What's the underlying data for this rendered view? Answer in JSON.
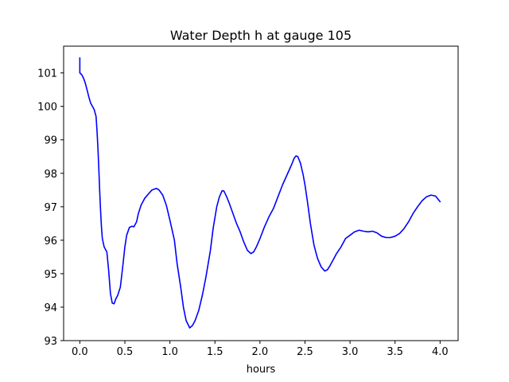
{
  "chart_data": {
    "type": "line",
    "title": "Water Depth h at gauge 105",
    "xlabel": "hours",
    "ylabel": "",
    "xlim": [
      -0.18,
      4.2
    ],
    "ylim": [
      93.0,
      101.8
    ],
    "xticks": [
      0.0,
      0.5,
      1.0,
      1.5,
      2.0,
      2.5,
      3.0,
      3.5,
      4.0
    ],
    "xtick_labels": [
      "0.0",
      "0.5",
      "1.0",
      "1.5",
      "2.0",
      "2.5",
      "3.0",
      "3.5",
      "4.0"
    ],
    "yticks": [
      93,
      94,
      95,
      96,
      97,
      98,
      99,
      100,
      101
    ],
    "ytick_labels": [
      "93",
      "94",
      "95",
      "96",
      "97",
      "98",
      "99",
      "100",
      "101"
    ],
    "grid": false,
    "series": [
      {
        "color": "#0000ff",
        "x": [
          0.0,
          0.0,
          0.0,
          0.02,
          0.04,
          0.06,
          0.08,
          0.1,
          0.12,
          0.14,
          0.16,
          0.18,
          0.19,
          0.2,
          0.21,
          0.22,
          0.23,
          0.24,
          0.25,
          0.27,
          0.3,
          0.32,
          0.34,
          0.36,
          0.38,
          0.4,
          0.42,
          0.45,
          0.48,
          0.5,
          0.52,
          0.55,
          0.58,
          0.6,
          0.63,
          0.65,
          0.68,
          0.72,
          0.75,
          0.8,
          0.85,
          0.88,
          0.92,
          0.96,
          1.0,
          1.05,
          1.08,
          1.12,
          1.15,
          1.18,
          1.22,
          1.25,
          1.28,
          1.32,
          1.36,
          1.4,
          1.45,
          1.48,
          1.52,
          1.55,
          1.58,
          1.6,
          1.63,
          1.66,
          1.7,
          1.74,
          1.78,
          1.82,
          1.86,
          1.9,
          1.93,
          1.96,
          2.0,
          2.05,
          2.1,
          2.15,
          2.2,
          2.25,
          2.3,
          2.35,
          2.38,
          2.4,
          2.42,
          2.45,
          2.48,
          2.5,
          2.53,
          2.56,
          2.6,
          2.64,
          2.68,
          2.72,
          2.75,
          2.78,
          2.82,
          2.85,
          2.9,
          2.95,
          3.0,
          3.05,
          3.1,
          3.15,
          3.2,
          3.25,
          3.3,
          3.35,
          3.4,
          3.45,
          3.5,
          3.55,
          3.6,
          3.65,
          3.7,
          3.75,
          3.8,
          3.85,
          3.9,
          3.95,
          4.0
        ],
        "values": [
          101.45,
          101.18,
          101.0,
          100.95,
          100.85,
          100.7,
          100.5,
          100.28,
          100.1,
          100.0,
          99.9,
          99.7,
          99.3,
          98.8,
          98.2,
          97.5,
          96.9,
          96.4,
          96.05,
          95.8,
          95.65,
          95.1,
          94.4,
          94.12,
          94.1,
          94.25,
          94.35,
          94.6,
          95.3,
          95.8,
          96.15,
          96.38,
          96.42,
          96.4,
          96.55,
          96.8,
          97.05,
          97.25,
          97.35,
          97.5,
          97.55,
          97.5,
          97.35,
          97.05,
          96.6,
          96.0,
          95.3,
          94.6,
          94.0,
          93.6,
          93.38,
          93.45,
          93.6,
          93.9,
          94.35,
          94.9,
          95.7,
          96.35,
          97.0,
          97.3,
          97.48,
          97.47,
          97.3,
          97.1,
          96.8,
          96.5,
          96.25,
          95.95,
          95.7,
          95.6,
          95.65,
          95.8,
          96.05,
          96.4,
          96.7,
          96.95,
          97.3,
          97.65,
          97.95,
          98.25,
          98.45,
          98.52,
          98.5,
          98.3,
          97.95,
          97.65,
          97.1,
          96.5,
          95.85,
          95.45,
          95.2,
          95.08,
          95.12,
          95.25,
          95.45,
          95.6,
          95.8,
          96.05,
          96.15,
          96.25,
          96.3,
          96.27,
          96.25,
          96.27,
          96.22,
          96.12,
          96.08,
          96.08,
          96.12,
          96.2,
          96.35,
          96.55,
          96.8,
          97.0,
          97.18,
          97.3,
          97.35,
          97.32,
          97.15
        ]
      }
    ]
  }
}
